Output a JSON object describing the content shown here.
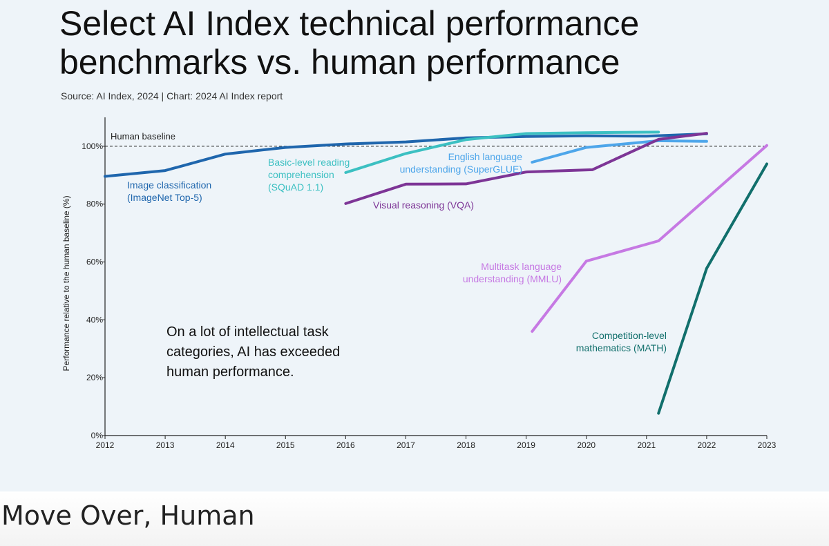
{
  "title_line1": "Select AI Index technical performance",
  "title_line2": "benchmarks vs. human performance",
  "source": "Source: AI Index, 2024 | Chart: 2024 AI Index report",
  "caption": "Move Over, Human",
  "chart_data": {
    "type": "line",
    "title": "Select AI Index technical performance benchmarks vs. human performance",
    "ylabel": "Performance relative to the human baseline (%)",
    "xlabel": "",
    "xlim": [
      2012,
      2023
    ],
    "ylim": [
      0,
      110
    ],
    "x_ticks": [
      "2012",
      "2013",
      "2014",
      "2015",
      "2016",
      "2017",
      "2018",
      "2019",
      "2020",
      "2021",
      "2022",
      "2023"
    ],
    "y_ticks": [
      "0%",
      "20%",
      "40%",
      "60%",
      "80%",
      "100%"
    ],
    "y_tick_values": [
      0,
      20,
      40,
      60,
      80,
      100
    ],
    "baseline": {
      "value": 100,
      "label": "Human baseline"
    },
    "annotation": [
      "On a lot of intellectual task",
      "categories, AI has exceeded",
      "human performance."
    ],
    "series": [
      {
        "name": "Image classification (ImageNet Top-5)",
        "label_lines": [
          "Image classification",
          "(ImageNet Top-5)"
        ],
        "color": "#1f66ad",
        "x": [
          2012,
          2013,
          2014,
          2015,
          2016,
          2017,
          2018,
          2019,
          2020,
          2021,
          2022
        ],
        "y": [
          89.6,
          91.6,
          97.3,
          99.6,
          100.8,
          101.5,
          102.9,
          103.4,
          103.6,
          103.5,
          104.3
        ]
      },
      {
        "name": "Basic-level reading comprehension (SQuAD 1.1)",
        "label_lines": [
          "Basic-level reading",
          "comprehension",
          "(SQuAD 1.1)"
        ],
        "color": "#3cc0c2",
        "x": [
          2016,
          2017,
          2018,
          2019,
          2020,
          2021.2
        ],
        "y": [
          90.9,
          97.5,
          102.3,
          104.4,
          104.7,
          104.9
        ]
      },
      {
        "name": "English language understanding (SuperGLUE)",
        "label_lines": [
          "English language",
          "understanding (SuperGLUE)"
        ],
        "color": "#4ea6ea",
        "x": [
          2019.1,
          2020,
          2021.2,
          2022
        ],
        "y": [
          94.5,
          99.6,
          101.9,
          101.7
        ]
      },
      {
        "name": "Visual reasoning (VQA)",
        "label_lines": [
          "Visual reasoning (VQA)"
        ],
        "color": "#7d3596",
        "x": [
          2016,
          2017,
          2018,
          2019,
          2020.1,
          2021.2,
          2022
        ],
        "y": [
          80.2,
          86.9,
          87.0,
          91.1,
          91.9,
          102.4,
          104.5
        ]
      },
      {
        "name": "Multitask language understanding (MMLU)",
        "label_lines": [
          "Multitask language",
          "understanding (MMLU)"
        ],
        "color": "#c679e3",
        "x": [
          2019.1,
          2020,
          2021.2,
          2023
        ],
        "y": [
          36.0,
          60.3,
          67.3,
          100.3
        ]
      },
      {
        "name": "Competition-level mathematics (MATH)",
        "label_lines": [
          "Competition-level",
          "mathematics (MATH)"
        ],
        "color": "#116f6c",
        "x": [
          2021.2,
          2022,
          2023
        ],
        "y": [
          7.7,
          57.8,
          93.9
        ]
      }
    ]
  }
}
